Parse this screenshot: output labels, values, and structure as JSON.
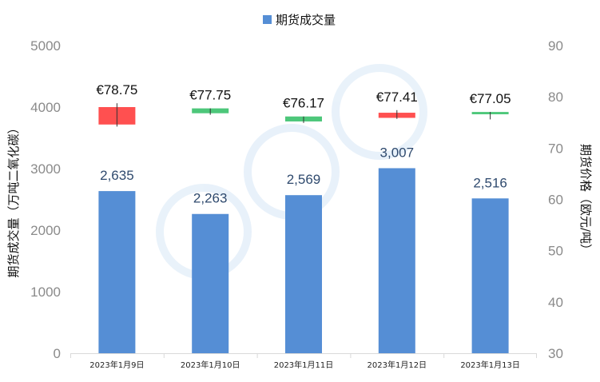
{
  "chart_data": {
    "type": "bar",
    "categories": [
      "2023年1月9日",
      "2023年1月10日",
      "2023年1月11日",
      "2023年1月12日",
      "2023年1月13日"
    ],
    "series": [
      {
        "name": "期货成交量",
        "values": [
          2635,
          2263,
          2569,
          3007,
          2516
        ],
        "labels": [
          "2,635",
          "2,263",
          "2,569",
          "3,007",
          "2,516"
        ],
        "color": "#558ed5"
      }
    ],
    "price_candles": [
      {
        "open": 78.0,
        "close": 74.6,
        "high": 78.75,
        "low": 74.2,
        "label": "€78.75",
        "color": "#ff5050"
      },
      {
        "open": 77.75,
        "close": 76.8,
        "high": 77.75,
        "low": 76.5,
        "label": "€77.75",
        "color": "#4dc77a"
      },
      {
        "open": 76.17,
        "close": 75.2,
        "high": 76.17,
        "low": 74.9,
        "label": "€76.17",
        "color": "#4dc77a"
      },
      {
        "open": 76.9,
        "close": 75.9,
        "high": 77.41,
        "low": 75.7,
        "label": "€77.41",
        "color": "#ff5050"
      },
      {
        "open": 77.05,
        "close": 76.6,
        "high": 77.05,
        "low": 75.6,
        "label": "€77.05",
        "color": "#4dc77a"
      }
    ],
    "ylabel": "期货成交量（万吨二氧化碳）",
    "ylabel_right": "期货价格（欧元/吨）",
    "ylim": [
      0,
      5000
    ],
    "yticks": [
      "0",
      "1000",
      "2000",
      "3000",
      "4000",
      "5000"
    ],
    "ylim_right": [
      30,
      90
    ],
    "yticks_right": [
      "30",
      "40",
      "50",
      "60",
      "70",
      "80",
      "90"
    ],
    "legend_position": "top-center",
    "grid": false
  }
}
